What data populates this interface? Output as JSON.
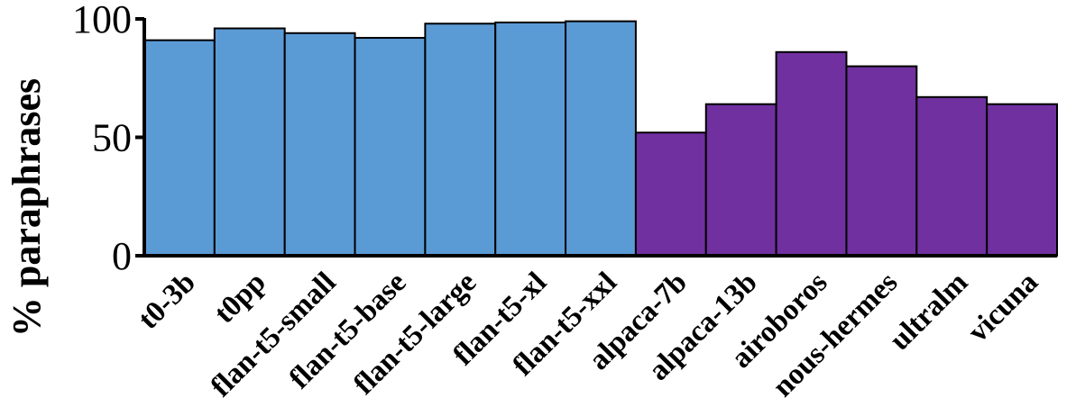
{
  "chart_data": {
    "type": "bar",
    "ylabel": "% paraphrases",
    "ylim": [
      0,
      100
    ],
    "yticks": [
      0,
      50,
      100
    ],
    "grid": false,
    "categories": [
      "t0-3b",
      "t0pp",
      "flan-t5-small",
      "flan-t5-base",
      "flan-t5-large",
      "flan-t5-xl",
      "flan-t5-xxl",
      "alpaca-7b",
      "alpaca-13b",
      "airoboros",
      "nous-hermes",
      "ultralm",
      "vicuna"
    ],
    "values": [
      91,
      96,
      94,
      92,
      98,
      98.5,
      99,
      52,
      64,
      86,
      80,
      67,
      64
    ],
    "groups": [
      {
        "color": "#5b9bd5",
        "members": [
          "t0-3b",
          "t0pp",
          "flan-t5-small",
          "flan-t5-base",
          "flan-t5-large",
          "flan-t5-xl",
          "flan-t5-xxl"
        ]
      },
      {
        "color": "#7030a0",
        "members": [
          "alpaca-7b",
          "alpaca-13b",
          "airoboros",
          "nous-hermes",
          "ultralm",
          "vicuna"
        ]
      }
    ]
  }
}
